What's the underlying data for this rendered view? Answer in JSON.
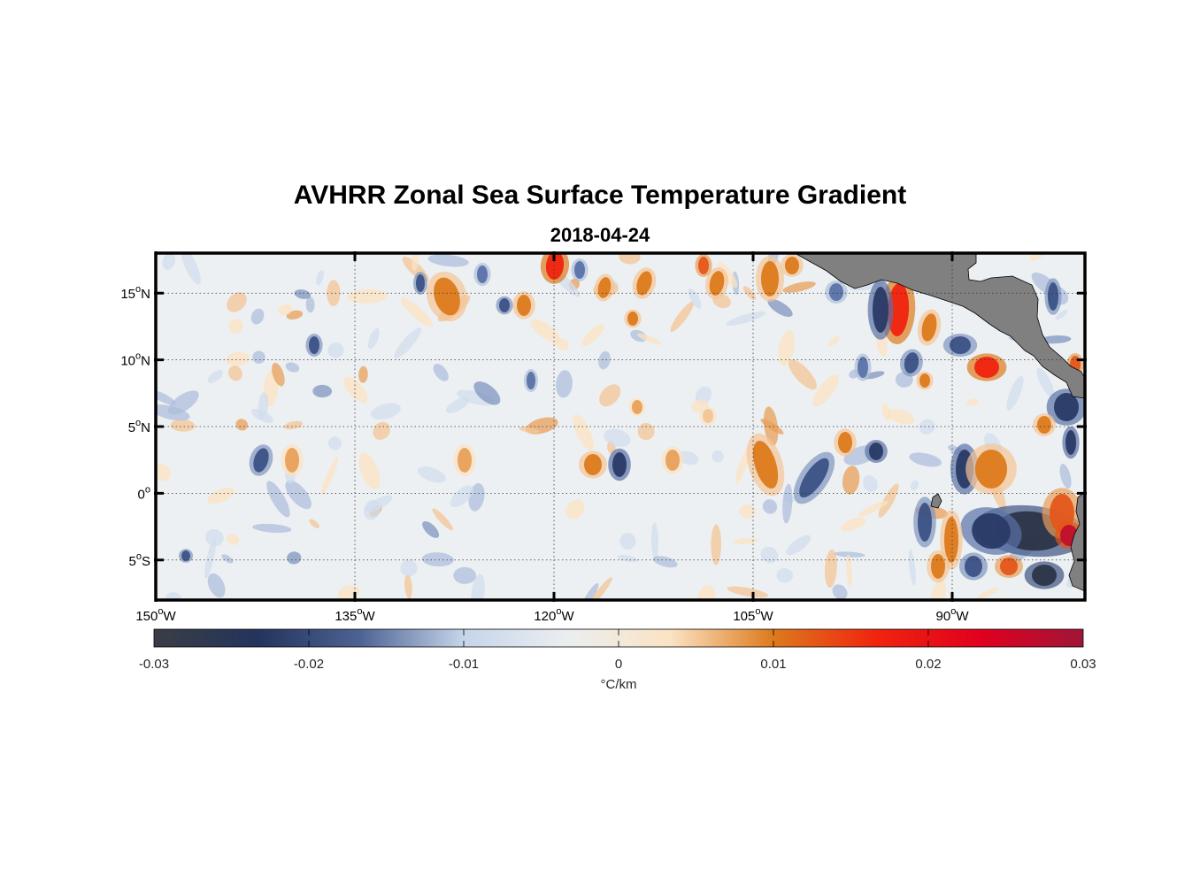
{
  "title": "AVHRR Zonal Sea Surface Temperature Gradient",
  "subtitle": "2018-04-24",
  "map": {
    "lon_range": [
      -150,
      -80
    ],
    "lat_range": [
      -8,
      18
    ],
    "lon_ticks": [
      {
        "value": -150,
        "num": "150",
        "sup": "o",
        "hemi": "W"
      },
      {
        "value": -135,
        "num": "135",
        "sup": "o",
        "hemi": "W"
      },
      {
        "value": -120,
        "num": "120",
        "sup": "o",
        "hemi": "W"
      },
      {
        "value": -105,
        "num": "105",
        "sup": "o",
        "hemi": "W"
      },
      {
        "value": -90,
        "num": "90",
        "sup": "o",
        "hemi": "W"
      }
    ],
    "lat_ticks": [
      {
        "value": 15,
        "num": "15",
        "sup": "o",
        "hemi": "N"
      },
      {
        "value": 10,
        "num": "10",
        "sup": "o",
        "hemi": "N"
      },
      {
        "value": 5,
        "num": "5",
        "sup": "o",
        "hemi": "N"
      },
      {
        "value": 0,
        "num": "0",
        "sup": "o",
        "hemi": ""
      },
      {
        "value": -5,
        "num": "5",
        "sup": "o",
        "hemi": "S"
      }
    ],
    "land_color": "#808080"
  },
  "colorbar": {
    "min": -0.03,
    "max": 0.03,
    "ticks": [
      "-0.03",
      "-0.02",
      "-0.01",
      "0",
      "0.01",
      "0.02",
      "0.03"
    ],
    "unit_label": "°C/km",
    "colors": [
      "#3a3d44",
      "#23345c",
      "#4d6394",
      "#c6d5ea",
      "#ebeef0",
      "#fbe3c3",
      "#dd7a1c",
      "#f0240e",
      "#e1001e",
      "#a01538"
    ]
  }
}
